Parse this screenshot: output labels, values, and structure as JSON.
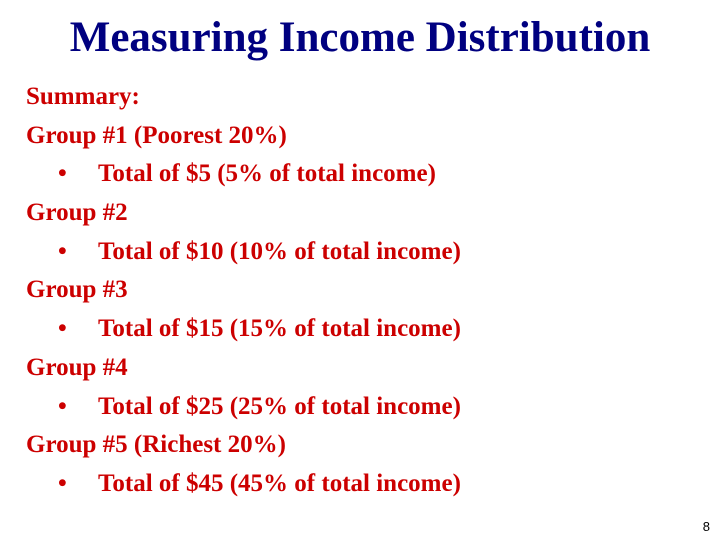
{
  "slide": {
    "title": "Measuring Income Distribution",
    "summary_label": "Summary:",
    "groups": [
      {
        "heading": "Group #1 (Poorest 20%)",
        "detail": "Total of $5 (5% of total income)"
      },
      {
        "heading": "Group #2",
        "detail": "Total of $10 (10% of total income)"
      },
      {
        "heading": "Group #3",
        "detail": "Total of $15 (15% of total income)"
      },
      {
        "heading": "Group #4",
        "detail": "Total of $25 (25% of total income)"
      },
      {
        "heading": "Group #5 (Richest 20%)",
        "detail": "Total of $45 (45% of total income)"
      }
    ],
    "bullet_glyph": "•",
    "page_number": "8",
    "colors": {
      "title": "#000080",
      "body": "#cc0000",
      "background": "#ffffff"
    }
  }
}
